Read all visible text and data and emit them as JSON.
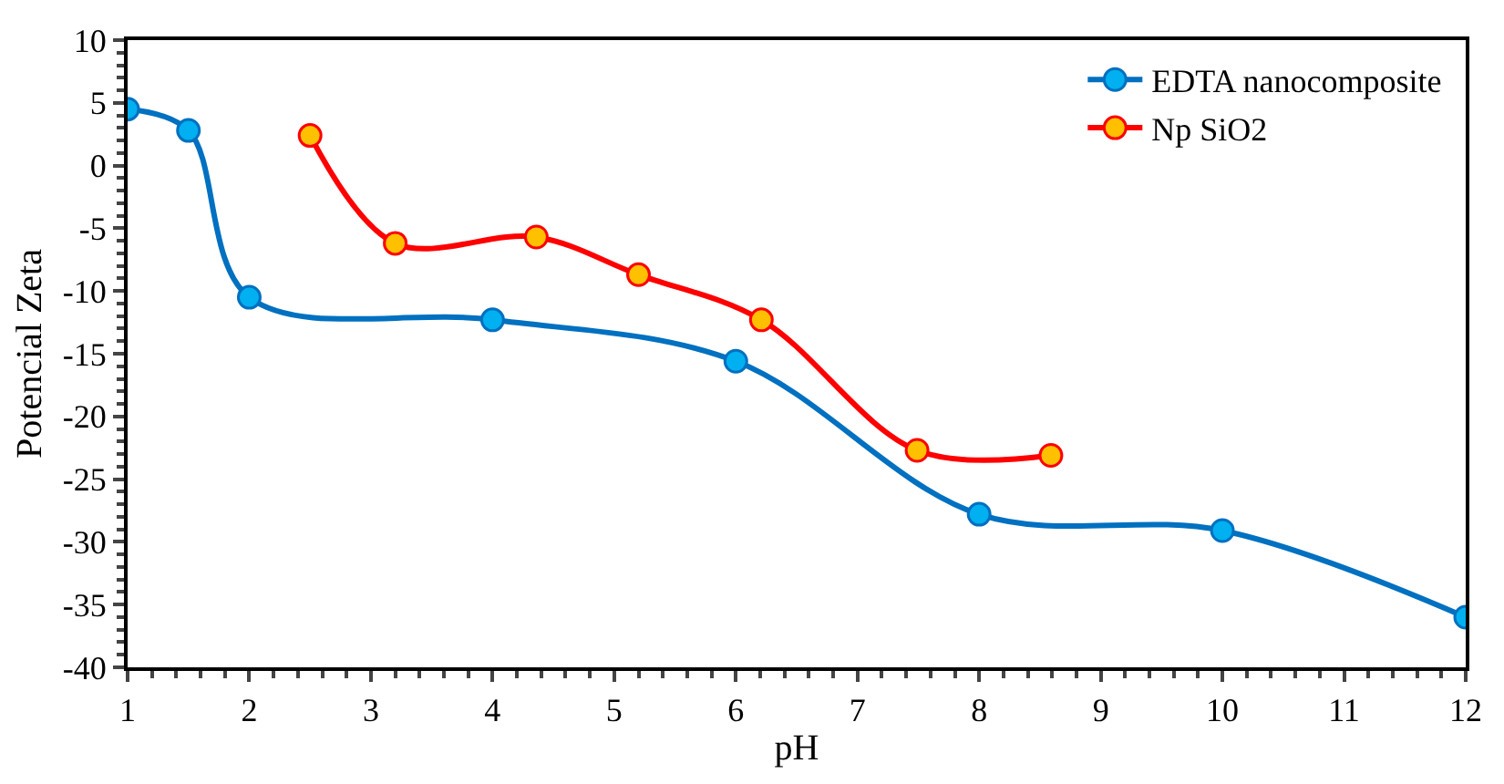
{
  "chart_data": {
    "type": "line",
    "xlabel": "pH",
    "ylabel": "Potencial Zeta",
    "series": [
      {
        "name": "EDTA nanocomposite",
        "color": "#0070c0",
        "colors": [
          "#00b0f0",
          "#00b0f0",
          "#00b0f0",
          "#00b0f0",
          "#00b0f0",
          "#00b0f0",
          "#00b0f0",
          "#00b0f0"
        ],
        "x": [
          1,
          1.5,
          2,
          4,
          6,
          8,
          10,
          12
        ],
        "values": [
          4.5,
          2.8,
          -10.5,
          -12.3,
          -15.6,
          -27.8,
          -29.1,
          -36
        ]
      },
      {
        "name": "Np SiO2",
        "color": "#ff0000",
        "colors": [
          "#ffc000",
          "#ffc000",
          "#ffc000",
          "#ffc000",
          "#ffc000",
          "#ffc000",
          "#ffc000"
        ],
        "x": [
          2.5,
          3.2,
          4.36,
          5.2,
          6.21,
          7.49,
          8.59
        ],
        "values": [
          2.4,
          -6.2,
          -5.7,
          -8.7,
          -12.3,
          -22.7,
          -23.1
        ]
      }
    ],
    "xlim": [
      1,
      12
    ],
    "xticks": [
      1,
      2,
      3,
      4,
      5,
      6,
      7,
      8,
      9,
      10,
      11,
      12
    ],
    "ylim": [
      -40,
      10
    ],
    "yticks": [
      -40,
      -35,
      -30,
      -25,
      -20,
      -15,
      -10,
      -5,
      0,
      5,
      10
    ],
    "legend": "top right",
    "marker": "circle",
    "line_style": "solid"
  }
}
